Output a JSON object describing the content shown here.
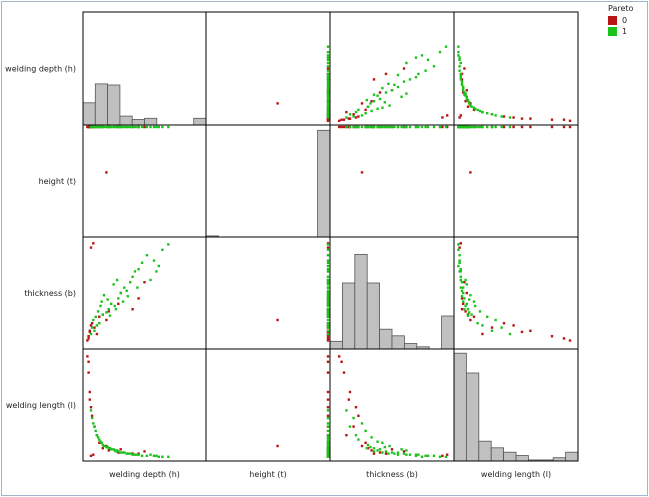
{
  "colors": {
    "pareto_0": "#b81414",
    "pareto_1": "#1cc21c",
    "hist_fill": "#c0c0c0",
    "hist_stroke": "#555555",
    "frame": "#000000"
  },
  "legend": {
    "title": "Pareto",
    "items": [
      {
        "label": "0",
        "color": "#b81414"
      },
      {
        "label": "1",
        "color": "#1cc21c"
      }
    ]
  },
  "chart_data": {
    "type": "scatter",
    "variables": [
      "welding depth (h)",
      "height (t)",
      "thickness (b)",
      "welding length (l)"
    ],
    "ranges": [
      [
        0,
        1
      ],
      [
        0,
        1
      ],
      [
        0,
        1
      ],
      [
        0,
        1
      ]
    ],
    "histograms": [
      [
        0.2,
        0.37,
        0.36,
        0.08,
        0.05,
        0.06,
        0.0,
        0.0,
        0.0,
        0.06
      ],
      [
        0.01,
        0.0,
        0.0,
        0.0,
        0.0,
        0.0,
        0.0,
        0.0,
        0.0,
        0.97
      ],
      [
        0.07,
        0.6,
        0.86,
        0.6,
        0.18,
        0.12,
        0.05,
        0.02,
        0.0,
        0.3
      ],
      [
        0.98,
        0.8,
        0.18,
        0.12,
        0.08,
        0.05,
        0.01,
        0.01,
        0.03,
        0.08
      ]
    ],
    "series": [
      {
        "name": "0",
        "points": [
          [
            0.02,
            1.0,
            0.06,
            0.95
          ],
          [
            0.03,
            1.0,
            0.1,
            0.8
          ],
          [
            0.04,
            1.0,
            0.15,
            0.62
          ],
          [
            0.05,
            1.0,
            0.2,
            0.48
          ],
          [
            0.04,
            1.0,
            0.14,
            0.55
          ],
          [
            0.03,
            1.0,
            0.08,
            0.9
          ],
          [
            0.06,
            1.0,
            0.22,
            0.4
          ],
          [
            0.08,
            1.0,
            0.18,
            0.3
          ],
          [
            0.1,
            1.0,
            0.12,
            0.22
          ],
          [
            0.12,
            1.0,
            0.28,
            0.15
          ],
          [
            0.15,
            1.0,
            0.3,
            0.1
          ],
          [
            0.2,
            1.0,
            0.33,
            0.08
          ],
          [
            0.28,
            1.0,
            0.4,
            0.06
          ],
          [
            0.4,
            1.0,
            0.35,
            0.05
          ],
          [
            0.45,
            1.0,
            0.45,
            0.05
          ],
          [
            0.07,
            1.0,
            0.96,
            0.04
          ],
          [
            0.05,
            1.0,
            0.92,
            0.03
          ],
          [
            0.3,
            1.0,
            0.5,
            0.09
          ],
          [
            0.18,
            0.58,
            0.25,
            0.12
          ],
          [
            0.5,
            1.0,
            0.6,
            0.07
          ]
        ]
      },
      {
        "name": "1",
        "points": [
          [
            0.08,
            1.0,
            0.15,
            0.3
          ],
          [
            0.1,
            1.0,
            0.2,
            0.22
          ],
          [
            0.12,
            1.0,
            0.22,
            0.18
          ],
          [
            0.15,
            1.0,
            0.3,
            0.13
          ],
          [
            0.18,
            1.0,
            0.32,
            0.11
          ],
          [
            0.2,
            1.0,
            0.35,
            0.1
          ],
          [
            0.22,
            1.0,
            0.4,
            0.09
          ],
          [
            0.25,
            1.0,
            0.38,
            0.08
          ],
          [
            0.28,
            1.0,
            0.45,
            0.07
          ],
          [
            0.3,
            1.0,
            0.5,
            0.06
          ],
          [
            0.33,
            1.0,
            0.55,
            0.06
          ],
          [
            0.35,
            1.0,
            0.52,
            0.05
          ],
          [
            0.38,
            1.0,
            0.6,
            0.05
          ],
          [
            0.4,
            1.0,
            0.65,
            0.04
          ],
          [
            0.42,
            1.0,
            0.7,
            0.04
          ],
          [
            0.45,
            1.0,
            0.72,
            0.04
          ],
          [
            0.48,
            1.0,
            0.78,
            0.03
          ],
          [
            0.52,
            1.0,
            0.85,
            0.03
          ],
          [
            0.55,
            1.0,
            0.62,
            0.04
          ],
          [
            0.6,
            1.0,
            0.7,
            0.03
          ],
          [
            0.65,
            1.0,
            0.9,
            0.02
          ],
          [
            0.7,
            1.0,
            0.95,
            0.02
          ],
          [
            0.05,
            1.0,
            0.12,
            0.45
          ],
          [
            0.06,
            1.0,
            0.18,
            0.38
          ],
          [
            0.07,
            1.0,
            0.25,
            0.33
          ],
          [
            0.09,
            1.0,
            0.28,
            0.26
          ],
          [
            0.14,
            1.0,
            0.42,
            0.15
          ],
          [
            0.16,
            1.0,
            0.48,
            0.12
          ],
          [
            0.24,
            1.0,
            0.58,
            0.09
          ],
          [
            0.26,
            1.0,
            0.35,
            0.07
          ],
          [
            0.32,
            1.0,
            0.42,
            0.06
          ],
          [
            0.36,
            1.0,
            0.47,
            0.05
          ],
          [
            0.44,
            1.0,
            0.55,
            0.04
          ],
          [
            0.58,
            1.0,
            0.8,
            0.03
          ],
          [
            0.62,
            1.0,
            0.75,
            0.02
          ],
          [
            0.13,
            1.0,
            0.38,
            0.16
          ],
          [
            0.19,
            1.0,
            0.44,
            0.11
          ],
          [
            0.21,
            1.0,
            0.29,
            0.1
          ],
          [
            0.11,
            1.0,
            0.33,
            0.2
          ],
          [
            0.27,
            1.0,
            0.62,
            0.08
          ]
        ]
      }
    ]
  }
}
